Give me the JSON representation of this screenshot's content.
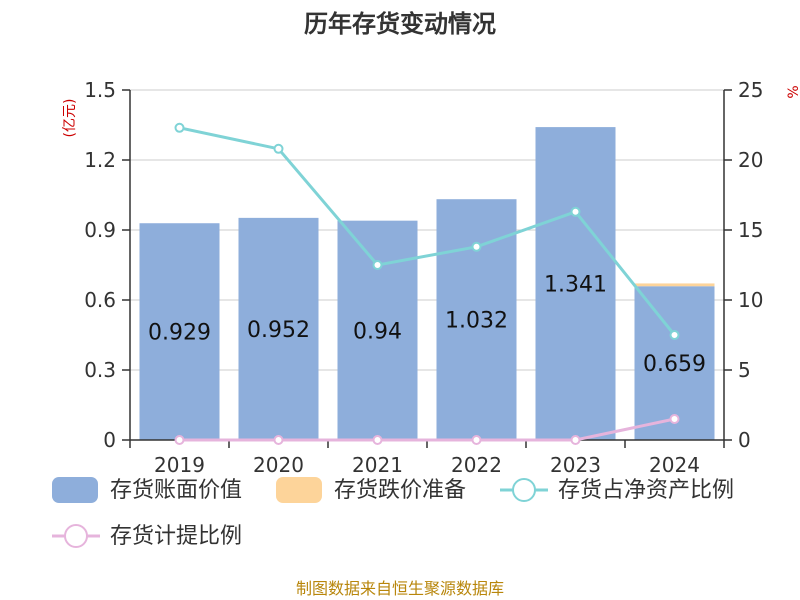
{
  "title": "历年存货变动情况",
  "source": "制图数据来自恒生聚源数据库",
  "colors": {
    "bar": "#8eaedb",
    "reserve": "#fdd49a",
    "ratio_net": "#7fd3d6",
    "ratio_provision": "#e6b4dc"
  },
  "chart_data": {
    "type": "bar",
    "categories": [
      "2019",
      "2020",
      "2021",
      "2022",
      "2023",
      "2024"
    ],
    "left_axis": {
      "unit": "(亿元)",
      "ylim": [
        0,
        1.5
      ],
      "ticks": [
        "0",
        "0.3",
        "0.6",
        "0.9",
        "1.2",
        "1.5"
      ]
    },
    "right_axis": {
      "unit": "%",
      "ylim": [
        0,
        25
      ],
      "ticks": [
        "0",
        "5",
        "10",
        "15",
        "20",
        "25"
      ]
    },
    "series": [
      {
        "name": "存货账面价值",
        "type": "bar",
        "axis": "left",
        "values": [
          0.929,
          0.952,
          0.94,
          1.032,
          1.341,
          0.659
        ],
        "labels": [
          "0.929",
          "0.952",
          "0.94",
          "1.032",
          "1.341",
          "0.659"
        ]
      },
      {
        "name": "存货跌价准备",
        "type": "bar-stack",
        "axis": "left",
        "values": [
          0,
          0,
          0,
          0,
          0,
          0.012
        ]
      },
      {
        "name": "存货占净资产比例",
        "type": "line",
        "axis": "right",
        "values": [
          22.3,
          20.8,
          12.5,
          13.8,
          16.3,
          7.5
        ]
      },
      {
        "name": "存货计提比例",
        "type": "line",
        "axis": "right",
        "values": [
          0,
          0,
          0,
          0,
          0,
          1.5
        ]
      }
    ],
    "grid": true,
    "legend_position": "bottom"
  }
}
